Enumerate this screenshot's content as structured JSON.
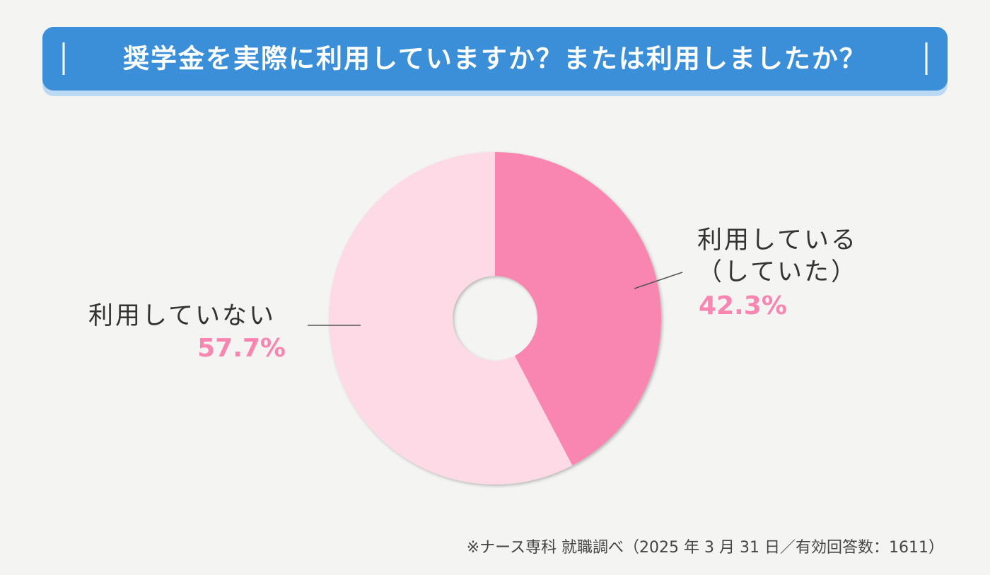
{
  "chart_data": {
    "type": "donut",
    "title": "奨学金を実際に利用していますか？または利用しましたか？",
    "categories": [
      "利用している（していた）",
      "利用していない"
    ],
    "values": [
      42.3,
      57.7
    ],
    "value_labels": [
      "42.3%",
      "57.7%"
    ],
    "colors": [
      "#f985b1",
      "#fddae6"
    ],
    "note": "※ナース専科 就職調べ（2025 年 3 月 31 日／有効回答数：1611）"
  }
}
